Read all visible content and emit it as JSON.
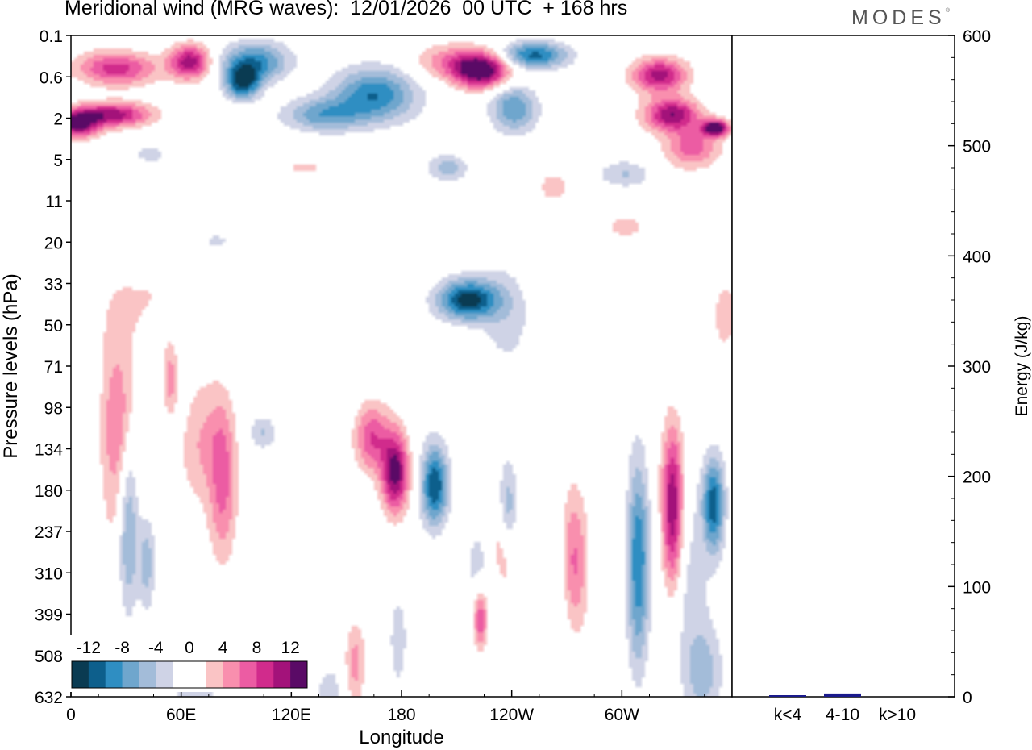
{
  "chart_data": [
    {
      "type": "heatmap",
      "title": "Meridional wind (MRG waves):  12/01/2026  00 UTC  + 168 hrs",
      "xlabel": "Longitude",
      "ylabel": "Pressure levels (hPa)",
      "x_ticks": [
        "0",
        "60E",
        "120E",
        "180",
        "120W",
        "60W"
      ],
      "y_ticks": [
        "0.1",
        "0.6",
        "2",
        "5",
        "11",
        "20",
        "33",
        "50",
        "71",
        "98",
        "134",
        "180",
        "237",
        "310",
        "399",
        "508",
        "632"
      ],
      "colorbar": {
        "levels": [
          -14,
          -12,
          -10,
          -8,
          -6,
          -4,
          -2,
          0,
          2,
          4,
          6,
          8,
          10,
          12,
          14
        ],
        "labels": [
          "-12",
          "-8",
          "-4",
          "0",
          "4",
          "8",
          "12"
        ],
        "colors": [
          "#0a3b52",
          "#0d5f8c",
          "#2f8ec2",
          "#6fa6cd",
          "#a3bcd9",
          "#cfd3e6",
          "#ffffff",
          "#ffffff",
          "#fac4c5",
          "#f98fae",
          "#ec5ca3",
          "#d12b8c",
          "#a3127a",
          "#5a0a66"
        ]
      },
      "blobs": [
        [
          -13,
          0.6,
          0.4,
          0.045,
          0.03
        ],
        [
          -12,
          0.26,
          0.07,
          0.025,
          0.025
        ],
        [
          -9,
          0.28,
          0.04,
          0.05,
          0.03
        ],
        [
          -10,
          0.46,
          0.09,
          0.06,
          0.04
        ],
        [
          -7,
          0.38,
          0.12,
          0.06,
          0.025
        ],
        [
          -11,
          0.7,
          0.03,
          0.05,
          0.02
        ],
        [
          -8,
          0.67,
          0.11,
          0.035,
          0.035
        ],
        [
          -5,
          0.57,
          0.2,
          0.03,
          0.02
        ],
        [
          -4,
          0.84,
          0.21,
          0.04,
          0.02
        ],
        [
          -3,
          0.12,
          0.18,
          0.025,
          0.015
        ],
        [
          -3,
          0.22,
          0.31,
          0.02,
          0.01
        ],
        [
          -3,
          0.66,
          0.42,
          0.04,
          0.08
        ],
        [
          -4,
          0.29,
          0.6,
          0.02,
          0.025
        ],
        [
          -7,
          0.087,
          0.74,
          0.015,
          0.13
        ],
        [
          -5,
          0.115,
          0.8,
          0.012,
          0.07
        ],
        [
          -3,
          0.19,
          0.99,
          0.04,
          0.06
        ],
        [
          -12,
          0.55,
          0.68,
          0.02,
          0.06
        ],
        [
          -5,
          0.63,
          0.82,
          0.03,
          0.1
        ],
        [
          -7,
          0.661,
          0.72,
          0.015,
          0.07
        ],
        [
          -4,
          0.74,
          0.85,
          0.02,
          0.1
        ],
        [
          -10,
          0.858,
          0.8,
          0.016,
          0.15
        ],
        [
          -11,
          0.972,
          0.71,
          0.016,
          0.07
        ],
        [
          -5,
          0.955,
          0.96,
          0.03,
          0.08
        ],
        [
          -3,
          0.93,
          0.8,
          0.035,
          0.12
        ],
        [
          -3,
          0.495,
          0.92,
          0.015,
          0.09
        ],
        [
          -3,
          0.39,
          0.99,
          0.02,
          0.04
        ],
        [
          11,
          0.18,
          0.04,
          0.03,
          0.025
        ],
        [
          9,
          0.07,
          0.05,
          0.06,
          0.025
        ],
        [
          11,
          0.06,
          0.12,
          0.06,
          0.018
        ],
        [
          12,
          0.01,
          0.135,
          0.03,
          0.02
        ],
        [
          13,
          0.62,
          0.055,
          0.04,
          0.025
        ],
        [
          6,
          0.59,
          0.04,
          0.07,
          0.025
        ],
        [
          11,
          0.89,
          0.06,
          0.04,
          0.025
        ],
        [
          12,
          0.91,
          0.12,
          0.04,
          0.025
        ],
        [
          14,
          0.975,
          0.14,
          0.02,
          0.012
        ],
        [
          7,
          0.94,
          0.17,
          0.04,
          0.03
        ],
        [
          2,
          0.35,
          0.2,
          0.06,
          0.02
        ],
        [
          4,
          0.73,
          0.23,
          0.02,
          0.02
        ],
        [
          4,
          0.84,
          0.29,
          0.025,
          0.015
        ],
        [
          2,
          0.52,
          0.47,
          0.06,
          0.02
        ],
        [
          2,
          0.83,
          0.48,
          0.02,
          0.025
        ],
        [
          6,
          0.07,
          0.6,
          0.025,
          0.15
        ],
        [
          5,
          0.15,
          0.52,
          0.01,
          0.05
        ],
        [
          6,
          0.23,
          0.68,
          0.02,
          0.12
        ],
        [
          4,
          0.2,
          0.62,
          0.035,
          0.1
        ],
        [
          2,
          0.11,
          0.4,
          0.06,
          0.08
        ],
        [
          13,
          0.49,
          0.66,
          0.02,
          0.06
        ],
        [
          8,
          0.455,
          0.61,
          0.025,
          0.05
        ],
        [
          10,
          0.62,
          0.88,
          0.012,
          0.05
        ],
        [
          7,
          0.65,
          0.78,
          0.025,
          0.08
        ],
        [
          13,
          0.91,
          0.72,
          0.016,
          0.12
        ],
        [
          6,
          0.76,
          0.78,
          0.02,
          0.1
        ],
        [
          3,
          0.75,
          0.85,
          0.03,
          0.07
        ],
        [
          5,
          0.43,
          0.95,
          0.015,
          0.06
        ],
        [
          3,
          0.99,
          0.42,
          0.02,
          0.06
        ]
      ]
    },
    {
      "type": "bar",
      "categories": [
        "k<4",
        "4-10",
        "k>10"
      ],
      "values": [
        1,
        3,
        0
      ],
      "ylabel": "Energy (J/kg)",
      "ylim": [
        0,
        600
      ],
      "y_ticks": [
        "0",
        "100",
        "200",
        "300",
        "400",
        "500",
        "600"
      ],
      "bar_color": "#1a1a8c"
    }
  ],
  "branding": "MODES"
}
